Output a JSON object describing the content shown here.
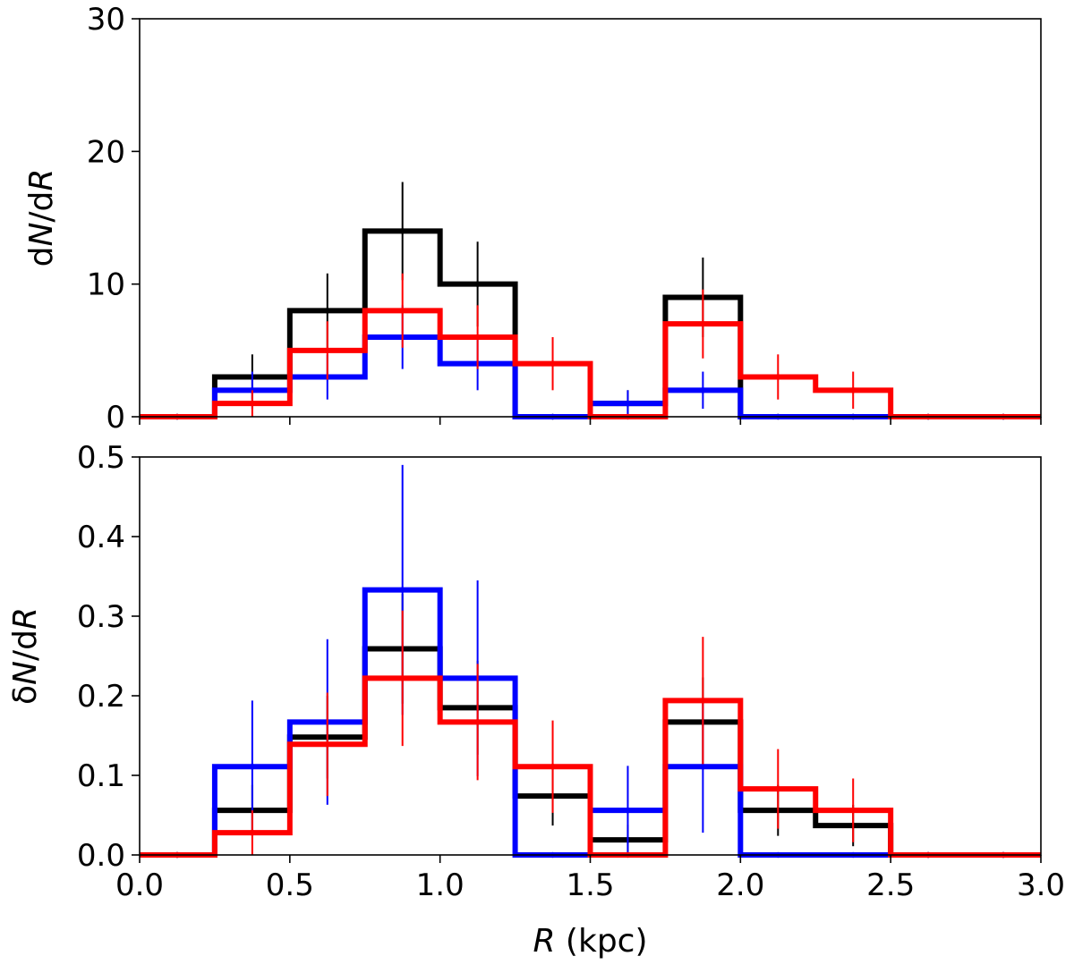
{
  "chart_data": [
    {
      "type": "step-histogram",
      "panel": "top",
      "ylabel_parts": [
        "d",
        "N",
        "/d",
        "R"
      ],
      "xlabel": "",
      "xlim": [
        0.0,
        3.0
      ],
      "ylim": [
        0,
        30
      ],
      "yticks": [
        0,
        10,
        20,
        30
      ],
      "ytick_labels": [
        "0",
        "10",
        "20",
        "30"
      ],
      "xticks": [
        0.0,
        0.5,
        1.0,
        1.5,
        2.0,
        2.5,
        3.0
      ],
      "xtick_labels": [],
      "bin_edges": [
        0.0,
        0.25,
        0.5,
        0.75,
        1.0,
        1.25,
        1.5,
        1.75,
        2.0,
        2.25,
        2.5,
        2.75,
        3.0
      ],
      "series": [
        {
          "name": "black",
          "color": "#000000",
          "values": [
            0,
            3,
            8,
            14,
            10,
            0,
            1,
            9,
            0,
            0,
            0,
            0
          ],
          "errors": [
            0,
            1.7,
            2.8,
            3.7,
            3.2,
            0,
            1.0,
            3.0,
            0,
            0,
            0,
            0
          ]
        },
        {
          "name": "blue",
          "color": "#0000ff",
          "values": [
            0,
            2,
            3,
            6,
            4,
            0,
            1,
            2,
            0,
            0,
            0,
            0
          ],
          "errors": [
            0,
            1.4,
            1.7,
            2.4,
            2.0,
            0,
            1.0,
            1.4,
            0,
            0,
            0,
            0
          ]
        },
        {
          "name": "red",
          "color": "#ff0000",
          "values": [
            0,
            1,
            5,
            8,
            6,
            4,
            0,
            7,
            3,
            2,
            0,
            0
          ],
          "errors": [
            0,
            1.0,
            2.2,
            2.8,
            2.4,
            2.0,
            0,
            2.6,
            1.7,
            1.4,
            0,
            0
          ]
        }
      ]
    },
    {
      "type": "step-histogram",
      "panel": "bottom",
      "ylabel_parts": [
        "δ",
        "N",
        "/d",
        "R"
      ],
      "xlabel_parts": [
        "R",
        " (kpc)"
      ],
      "xlim": [
        0.0,
        3.0
      ],
      "ylim": [
        0.0,
        0.5
      ],
      "yticks": [
        0.0,
        0.1,
        0.2,
        0.3,
        0.4,
        0.5
      ],
      "ytick_labels": [
        "0.0",
        "0.1",
        "0.2",
        "0.3",
        "0.4",
        "0.5"
      ],
      "xticks": [
        0.0,
        0.5,
        1.0,
        1.5,
        2.0,
        2.5,
        3.0
      ],
      "xtick_labels": [
        "0.0",
        "0.5",
        "1.0",
        "1.5",
        "2.0",
        "2.5",
        "3.0"
      ],
      "bin_edges": [
        0.0,
        0.25,
        0.5,
        0.75,
        1.0,
        1.25,
        1.5,
        1.75,
        2.0,
        2.25,
        2.5,
        2.75,
        3.0
      ],
      "series": [
        {
          "name": "black",
          "color": "#000000",
          "values": [
            0,
            0.056,
            0.148,
            0.259,
            0.185,
            0.074,
            0.019,
            0.167,
            0.056,
            0.037,
            0,
            0
          ],
          "errors": [
            0,
            0.032,
            0.052,
            0.069,
            0.059,
            0.037,
            0.019,
            0.056,
            0.032,
            0.026,
            0,
            0
          ]
        },
        {
          "name": "blue",
          "color": "#0000ff",
          "values": [
            0,
            0.111,
            0.167,
            0.333,
            0.222,
            0,
            0.056,
            0.111,
            0,
            0,
            0,
            0
          ],
          "errors": [
            0,
            0.083,
            0.104,
            0.157,
            0.123,
            0,
            0.056,
            0.083,
            0,
            0,
            0,
            0
          ]
        },
        {
          "name": "red",
          "color": "#ff0000",
          "values": [
            0,
            0.028,
            0.139,
            0.222,
            0.167,
            0.111,
            0,
            0.194,
            0.083,
            0.056,
            0,
            0
          ],
          "errors": [
            0,
            0.028,
            0.065,
            0.085,
            0.073,
            0.058,
            0,
            0.08,
            0.05,
            0.04,
            0,
            0
          ]
        }
      ]
    }
  ]
}
